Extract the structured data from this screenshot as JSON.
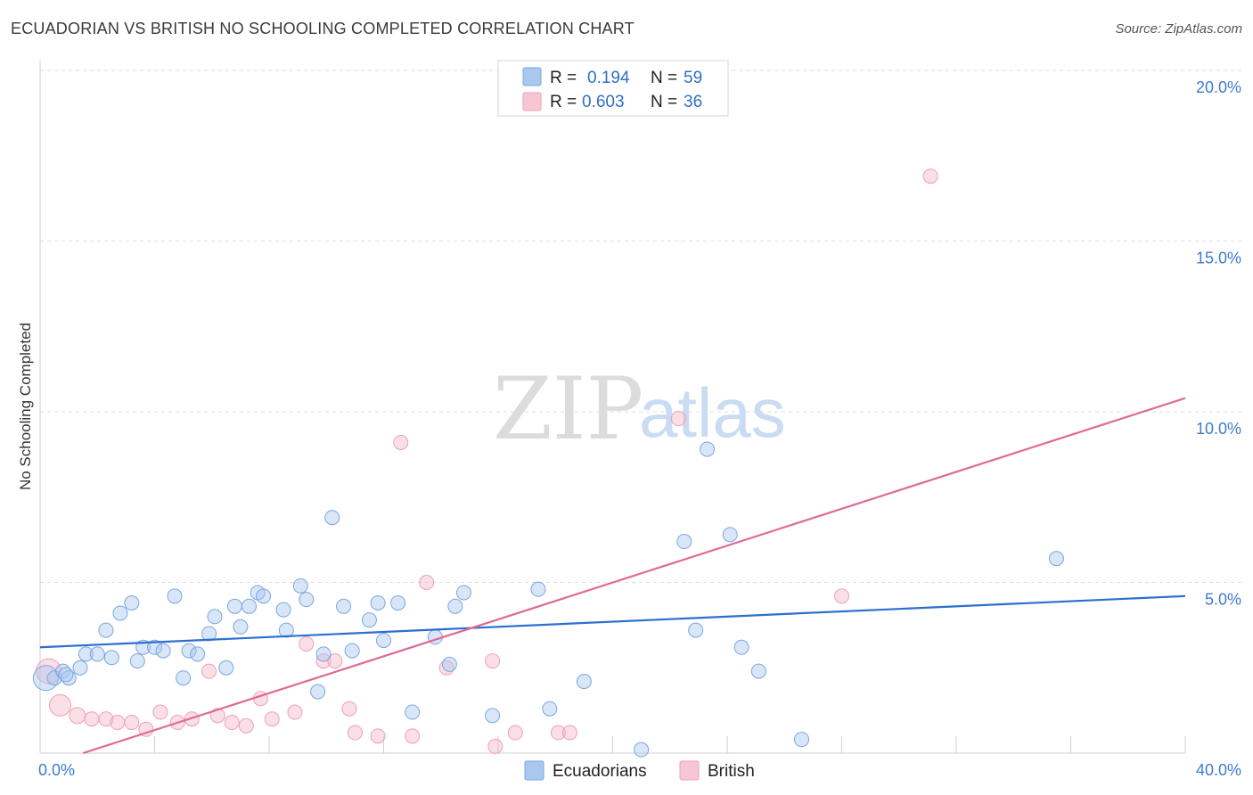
{
  "header": {
    "title": "ECUADORIAN VS BRITISH NO SCHOOLING COMPLETED CORRELATION CHART",
    "source": "Source: ZipAtlas.com"
  },
  "watermark": {
    "zip": "ZIP",
    "atlas": "atlas"
  },
  "legend": {
    "rows": [
      {
        "r_label": "R =",
        "r_value": "0.194",
        "n_label": "N =",
        "n_value": "59",
        "color": "#a9c8f0"
      },
      {
        "r_label": "R =",
        "r_value": "0.603",
        "n_label": "N =",
        "n_value": "36",
        "color": "#f7b7ca"
      }
    ]
  },
  "bottom_legend": [
    {
      "label": "Ecuadorians",
      "color": "#a9c8f0"
    },
    {
      "label": "British",
      "color": "#f7b7ca"
    }
  ],
  "chart_data": {
    "type": "scatter",
    "title": "ECUADORIAN VS BRITISH NO SCHOOLING COMPLETED CORRELATION CHART",
    "xlabel": "",
    "ylabel": "No Schooling Completed",
    "xlim": [
      0,
      40
    ],
    "ylim": [
      0,
      20
    ],
    "x_tick_labels": [
      "0.0%",
      "40.0%"
    ],
    "y_ticks": [
      5,
      10,
      15,
      20
    ],
    "y_tick_labels": [
      "5.0%",
      "10.0%",
      "15.0%",
      "20.0%"
    ],
    "colors": {
      "ecuadorians": "#a9c8f0",
      "ecuadorians_line": "#2b6fcf",
      "british": "#f7b7ca",
      "british_line": "#e06a95"
    },
    "series": [
      {
        "name": "Ecuadorians",
        "trend": {
          "x": [
            0,
            40
          ],
          "y": [
            3.1,
            4.6
          ]
        },
        "points": [
          [
            0.2,
            2.2,
            14
          ],
          [
            0.5,
            2.2,
            8
          ],
          [
            0.8,
            2.4,
            8
          ],
          [
            1.0,
            2.2,
            8
          ],
          [
            1.4,
            2.5,
            8
          ],
          [
            1.6,
            2.9,
            8
          ],
          [
            2.0,
            2.9,
            8
          ],
          [
            2.3,
            3.6,
            8
          ],
          [
            2.5,
            2.8,
            8
          ],
          [
            2.8,
            4.1,
            8
          ],
          [
            3.2,
            4.4,
            8
          ],
          [
            3.4,
            2.7,
            8
          ],
          [
            3.6,
            3.1,
            8
          ],
          [
            4.0,
            3.1,
            8
          ],
          [
            4.3,
            3.0,
            8
          ],
          [
            4.7,
            4.6,
            8
          ],
          [
            5.0,
            2.2,
            8
          ],
          [
            5.2,
            3.0,
            8
          ],
          [
            5.5,
            2.9,
            8
          ],
          [
            5.9,
            3.5,
            8
          ],
          [
            6.1,
            4.0,
            8
          ],
          [
            6.5,
            2.5,
            8
          ],
          [
            6.8,
            4.3,
            8
          ],
          [
            7.0,
            3.7,
            8
          ],
          [
            7.3,
            4.3,
            8
          ],
          [
            7.6,
            4.7,
            8
          ],
          [
            7.8,
            4.6,
            8
          ],
          [
            8.5,
            4.2,
            8
          ],
          [
            8.6,
            3.6,
            8
          ],
          [
            9.1,
            4.9,
            8
          ],
          [
            9.3,
            4.5,
            8
          ],
          [
            9.7,
            1.8,
            8
          ],
          [
            9.9,
            2.9,
            8
          ],
          [
            10.2,
            6.9,
            8
          ],
          [
            10.6,
            4.3,
            8
          ],
          [
            10.9,
            3.0,
            8
          ],
          [
            11.5,
            3.9,
            8
          ],
          [
            11.8,
            4.4,
            8
          ],
          [
            12.0,
            3.3,
            8
          ],
          [
            12.5,
            4.4,
            8
          ],
          [
            13.0,
            1.2,
            8
          ],
          [
            13.8,
            3.4,
            8
          ],
          [
            14.3,
            2.6,
            8
          ],
          [
            14.5,
            4.3,
            8
          ],
          [
            14.8,
            4.7,
            8
          ],
          [
            15.8,
            1.1,
            8
          ],
          [
            17.4,
            4.8,
            8
          ],
          [
            17.8,
            1.3,
            8
          ],
          [
            19.0,
            2.1,
            8
          ],
          [
            21.0,
            0.1,
            8
          ],
          [
            22.5,
            6.2,
            8
          ],
          [
            22.9,
            3.6,
            8
          ],
          [
            23.3,
            8.9,
            8
          ],
          [
            24.1,
            6.4,
            8
          ],
          [
            24.5,
            3.1,
            8
          ],
          [
            25.1,
            2.4,
            8
          ],
          [
            26.6,
            0.4,
            8
          ],
          [
            35.5,
            5.7,
            8
          ],
          [
            0.9,
            2.3,
            8
          ]
        ]
      },
      {
        "name": "British",
        "trend": {
          "x": [
            1.5,
            40
          ],
          "y": [
            0.0,
            10.4
          ]
        },
        "points": [
          [
            0.3,
            2.4,
            14
          ],
          [
            0.7,
            1.4,
            12
          ],
          [
            1.3,
            1.1,
            9
          ],
          [
            1.8,
            1.0,
            8
          ],
          [
            2.3,
            1.0,
            8
          ],
          [
            2.7,
            0.9,
            8
          ],
          [
            3.2,
            0.9,
            8
          ],
          [
            3.7,
            0.7,
            8
          ],
          [
            4.2,
            1.2,
            8
          ],
          [
            4.8,
            0.9,
            8
          ],
          [
            5.3,
            1.0,
            8
          ],
          [
            5.9,
            2.4,
            8
          ],
          [
            6.2,
            1.1,
            8
          ],
          [
            6.7,
            0.9,
            8
          ],
          [
            7.2,
            0.8,
            8
          ],
          [
            7.7,
            1.6,
            8
          ],
          [
            8.1,
            1.0,
            8
          ],
          [
            8.9,
            1.2,
            8
          ],
          [
            9.3,
            3.2,
            8
          ],
          [
            9.9,
            2.7,
            8
          ],
          [
            10.3,
            2.7,
            8
          ],
          [
            10.8,
            1.3,
            8
          ],
          [
            11.0,
            0.6,
            8
          ],
          [
            11.8,
            0.5,
            8
          ],
          [
            12.6,
            9.1,
            8
          ],
          [
            13.0,
            0.5,
            8
          ],
          [
            13.5,
            5.0,
            8
          ],
          [
            14.2,
            2.5,
            8
          ],
          [
            15.8,
            2.7,
            8
          ],
          [
            15.9,
            0.2,
            8
          ],
          [
            16.6,
            0.6,
            8
          ],
          [
            18.1,
            0.6,
            8
          ],
          [
            18.5,
            0.6,
            8
          ],
          [
            22.3,
            9.8,
            8
          ],
          [
            28.0,
            4.6,
            8
          ],
          [
            31.1,
            16.9,
            8
          ]
        ]
      }
    ]
  }
}
